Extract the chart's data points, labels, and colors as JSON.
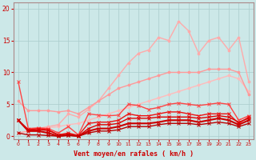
{
  "title": "",
  "xlabel": "Vent moyen/en rafales ( km/h )",
  "ylabel": "",
  "xlim": [
    -0.5,
    23.5
  ],
  "ylim": [
    -0.5,
    21
  ],
  "yticks": [
    0,
    5,
    10,
    15,
    20
  ],
  "xticks": [
    0,
    1,
    2,
    3,
    4,
    5,
    6,
    7,
    8,
    9,
    10,
    11,
    12,
    13,
    14,
    15,
    16,
    17,
    18,
    19,
    20,
    21,
    22,
    23
  ],
  "background_color": "#cce8e8",
  "grid_color": "#aacccc",
  "series": [
    {
      "x": [
        0,
        1,
        2,
        3,
        4,
        5,
        6,
        7,
        8,
        9,
        10,
        11,
        12,
        13,
        14,
        15,
        16,
        17,
        18,
        19,
        20,
        21,
        22,
        23
      ],
      "y": [
        0.5,
        0.8,
        1.0,
        1.3,
        1.5,
        1.8,
        2.0,
        2.5,
        3.0,
        3.5,
        4.0,
        4.5,
        5.0,
        5.5,
        6.0,
        6.5,
        7.0,
        7.5,
        8.0,
        8.5,
        9.0,
        9.5,
        9.0,
        7.0
      ],
      "color": "#ffbbbb",
      "lw": 1.0,
      "marker": "o",
      "ms": 2
    },
    {
      "x": [
        0,
        1,
        2,
        3,
        4,
        5,
        6,
        7,
        8,
        9,
        10,
        11,
        12,
        13,
        14,
        15,
        16,
        17,
        18,
        19,
        20,
        21,
        22,
        23
      ],
      "y": [
        0.5,
        0.8,
        1.2,
        1.5,
        1.8,
        3.5,
        3.0,
        4.2,
        5.5,
        7.5,
        9.5,
        11.5,
        13.0,
        13.5,
        15.5,
        15.0,
        18.0,
        16.5,
        13.0,
        15.0,
        15.5,
        13.5,
        15.5,
        8.5
      ],
      "color": "#ffaaaa",
      "lw": 1.0,
      "marker": "o",
      "ms": 2
    },
    {
      "x": [
        0,
        1,
        2,
        3,
        4,
        5,
        6,
        7,
        8,
        9,
        10,
        11,
        12,
        13,
        14,
        15,
        16,
        17,
        18,
        19,
        20,
        21,
        22,
        23
      ],
      "y": [
        5.5,
        4.0,
        4.0,
        4.0,
        3.8,
        4.0,
        3.5,
        4.5,
        5.5,
        6.5,
        7.5,
        8.0,
        8.5,
        9.0,
        9.5,
        10.0,
        10.0,
        10.0,
        10.0,
        10.5,
        10.5,
        10.5,
        10.0,
        6.5
      ],
      "color": "#ff9999",
      "lw": 1.0,
      "marker": "o",
      "ms": 2
    },
    {
      "x": [
        0,
        1,
        2,
        3,
        4,
        5,
        6,
        7,
        8,
        9,
        10,
        11,
        12,
        13,
        14,
        15,
        16,
        17,
        18,
        19,
        20,
        21,
        22,
        23
      ],
      "y": [
        8.5,
        1.2,
        1.3,
        1.2,
        0.5,
        1.5,
        0.2,
        3.5,
        3.3,
        3.2,
        3.3,
        5.0,
        4.8,
        4.2,
        4.5,
        5.0,
        5.2,
        5.0,
        4.8,
        5.0,
        5.2,
        5.0,
        2.5,
        3.2
      ],
      "color": "#ff4444",
      "lw": 1.0,
      "marker": "x",
      "ms": 3
    },
    {
      "x": [
        0,
        1,
        2,
        3,
        4,
        5,
        6,
        7,
        8,
        9,
        10,
        11,
        12,
        13,
        14,
        15,
        16,
        17,
        18,
        19,
        20,
        21,
        22,
        23
      ],
      "y": [
        2.5,
        1.0,
        1.2,
        1.0,
        0.2,
        0.5,
        0.1,
        2.0,
        2.2,
        2.2,
        2.5,
        3.5,
        3.2,
        3.2,
        3.5,
        3.8,
        3.8,
        3.5,
        3.2,
        3.5,
        3.5,
        3.5,
        2.0,
        3.0
      ],
      "color": "#ee1111",
      "lw": 1.0,
      "marker": "x",
      "ms": 3
    },
    {
      "x": [
        0,
        1,
        2,
        3,
        4,
        5,
        6,
        7,
        8,
        9,
        10,
        11,
        12,
        13,
        14,
        15,
        16,
        17,
        18,
        19,
        20,
        21,
        22,
        23
      ],
      "y": [
        2.5,
        1.0,
        1.0,
        0.9,
        0.2,
        0.3,
        0.0,
        1.2,
        1.8,
        1.8,
        2.0,
        2.8,
        2.8,
        2.8,
        3.0,
        3.0,
        3.0,
        3.0,
        2.8,
        3.0,
        3.2,
        3.0,
        2.2,
        2.8
      ],
      "color": "#dd0000",
      "lw": 1.0,
      "marker": "x",
      "ms": 3
    },
    {
      "x": [
        0,
        1,
        2,
        3,
        4,
        5,
        6,
        7,
        8,
        9,
        10,
        11,
        12,
        13,
        14,
        15,
        16,
        17,
        18,
        19,
        20,
        21,
        22,
        23
      ],
      "y": [
        2.5,
        0.8,
        0.8,
        0.5,
        0.0,
        0.2,
        0.0,
        0.8,
        1.2,
        1.2,
        1.5,
        2.0,
        2.0,
        2.0,
        2.2,
        2.5,
        2.5,
        2.5,
        2.2,
        2.5,
        2.8,
        2.5,
        1.8,
        2.5
      ],
      "color": "#cc0000",
      "lw": 1.5,
      "marker": "x",
      "ms": 3
    },
    {
      "x": [
        0,
        1,
        2,
        3,
        4,
        5,
        6,
        7,
        8,
        9,
        10,
        11,
        12,
        13,
        14,
        15,
        16,
        17,
        18,
        19,
        20,
        21,
        22,
        23
      ],
      "y": [
        0.5,
        0.2,
        0.2,
        0.1,
        0.0,
        0.1,
        0.0,
        0.5,
        0.8,
        0.8,
        1.0,
        1.5,
        1.5,
        1.5,
        1.8,
        2.0,
        2.0,
        2.0,
        1.8,
        2.0,
        2.2,
        2.0,
        1.5,
        2.0
      ],
      "color": "#bb0000",
      "lw": 1.0,
      "marker": "x",
      "ms": 3
    }
  ]
}
